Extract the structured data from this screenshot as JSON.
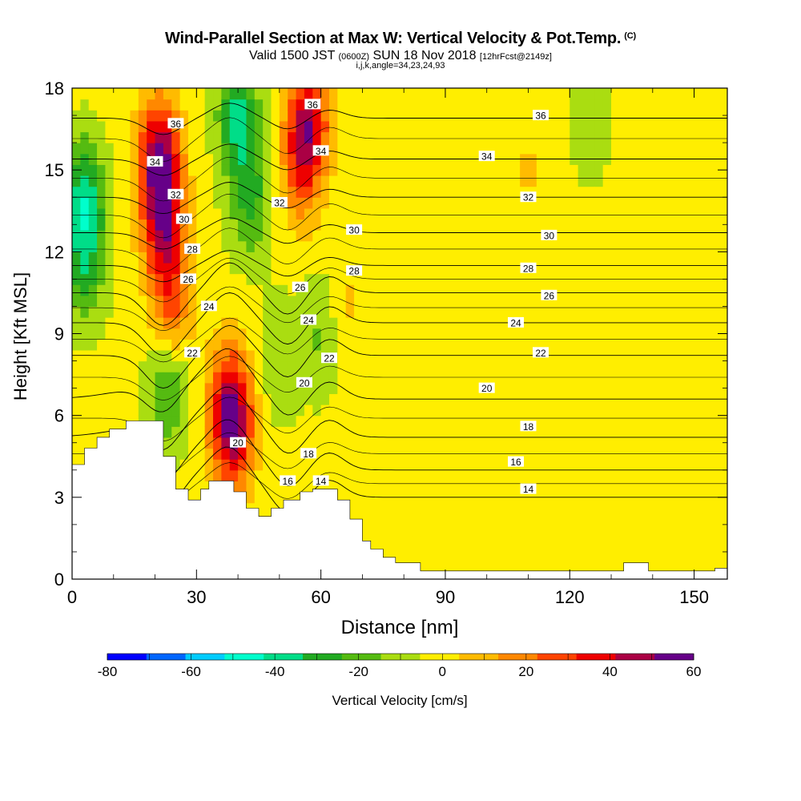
{
  "title": "Wind-Parallel Section at Max W: Vertical Velocity & Pot.Temp.",
  "title_mark": "(C)",
  "subtitle": {
    "valid_prefix": "Valid 1500 JST",
    "utc": "(0600Z)",
    "date": "SUN 18 Nov 2018",
    "forecast": "[12hrFcst@2149z]"
  },
  "grid_info": "i,j,k,angle=34,23,24,93",
  "chart_data": {
    "type": "heatmap",
    "xlabel": "Distance [nm]",
    "ylabel": "Height [Kft MSL]",
    "xlim": [
      0,
      158
    ],
    "ylim": [
      0,
      18
    ],
    "xticks": [
      0,
      30,
      60,
      90,
      120,
      150
    ],
    "yticks": [
      0,
      3,
      6,
      9,
      12,
      15,
      18
    ],
    "colorbar": {
      "label": "Vertical Velocity [cm/s]",
      "ticks": [
        -80,
        -60,
        -40,
        -20,
        0,
        20,
        40,
        60
      ],
      "bins": [
        -80,
        -70,
        -60,
        -50,
        -40,
        -30,
        -20,
        -10,
        0,
        10,
        20,
        30,
        40,
        50,
        60
      ],
      "colors": [
        "#0000ff",
        "#0066ff",
        "#00ccff",
        "#00ffcc",
        "#00dd88",
        "#22aa22",
        "#55bb11",
        "#aadd11",
        "#ffee00",
        "#ffbb00",
        "#ff8800",
        "#ff4400",
        "#ee0000",
        "#aa0044",
        "#660088"
      ]
    },
    "terrain": [
      [
        0,
        4.2
      ],
      [
        3,
        4.2
      ],
      [
        3,
        4.8
      ],
      [
        6,
        4.8
      ],
      [
        6,
        5.2
      ],
      [
        9,
        5.2
      ],
      [
        9,
        5.5
      ],
      [
        13,
        5.5
      ],
      [
        13,
        5.8
      ],
      [
        22,
        5.8
      ],
      [
        22,
        4.5
      ],
      [
        25,
        4.5
      ],
      [
        25,
        3.3
      ],
      [
        28,
        3.3
      ],
      [
        28,
        2.9
      ],
      [
        31,
        2.9
      ],
      [
        31,
        3.3
      ],
      [
        33,
        3.3
      ],
      [
        33,
        3.6
      ],
      [
        39,
        3.6
      ],
      [
        39,
        3.2
      ],
      [
        42,
        3.2
      ],
      [
        42,
        2.6
      ],
      [
        45,
        2.6
      ],
      [
        45,
        2.3
      ],
      [
        48,
        2.3
      ],
      [
        48,
        2.6
      ],
      [
        51,
        2.6
      ],
      [
        51,
        2.9
      ],
      [
        55,
        2.9
      ],
      [
        55,
        3.2
      ],
      [
        58,
        3.2
      ],
      [
        58,
        3.3
      ],
      [
        64,
        3.3
      ],
      [
        64,
        2.9
      ],
      [
        67,
        2.9
      ],
      [
        67,
        2.2
      ],
      [
        70,
        2.2
      ],
      [
        70,
        1.4
      ],
      [
        72,
        1.4
      ],
      [
        72,
        1.1
      ],
      [
        75,
        1.1
      ],
      [
        75,
        0.8
      ],
      [
        78,
        0.8
      ],
      [
        78,
        0.6
      ],
      [
        84,
        0.6
      ],
      [
        84,
        0.3
      ],
      [
        133,
        0.3
      ],
      [
        133,
        0.6
      ],
      [
        139,
        0.6
      ],
      [
        139,
        0.3
      ],
      [
        155,
        0.3
      ],
      [
        155,
        0.4
      ],
      [
        158,
        0.4
      ],
      [
        158,
        0
      ],
      [
        0,
        0
      ]
    ],
    "w_features": [
      {
        "x": 22,
        "y": 13,
        "w": 45
      },
      {
        "x": 21,
        "y": 15.5,
        "w": 55
      },
      {
        "x": 24,
        "y": 10,
        "w": 30
      },
      {
        "x": 38,
        "y": 6.5,
        "w": 45
      },
      {
        "x": 39,
        "y": 5,
        "w": 30
      },
      {
        "x": 57,
        "y": 16.8,
        "w": 45
      },
      {
        "x": 55,
        "y": 15,
        "w": 25
      },
      {
        "x": 3,
        "y": 14,
        "w": -35
      },
      {
        "x": 3,
        "y": 11.5,
        "w": -25
      },
      {
        "x": 23,
        "y": 7,
        "w": -25
      },
      {
        "x": 40,
        "y": 17,
        "w": -35
      },
      {
        "x": 43,
        "y": 14,
        "w": -25
      },
      {
        "x": 60,
        "y": 9,
        "w": -15
      },
      {
        "x": 50,
        "y": 8,
        "w": -12
      },
      {
        "x": 125,
        "y": 17,
        "w": -12
      },
      {
        "x": 110,
        "y": 15,
        "w": 8
      },
      {
        "x": 140,
        "y": 12,
        "w": 7
      },
      {
        "x": 66,
        "y": 10,
        "w": 10
      }
    ],
    "theta_levels": [
      14,
      16,
      18,
      20,
      22,
      24,
      26,
      28,
      30,
      32,
      34,
      36
    ],
    "theta_labels": [
      {
        "v": 36,
        "x": 25,
        "y": 16.7
      },
      {
        "v": 36,
        "x": 58,
        "y": 17.4
      },
      {
        "v": 36,
        "x": 113,
        "y": 17.0
      },
      {
        "v": 34,
        "x": 20,
        "y": 15.3
      },
      {
        "v": 34,
        "x": 60,
        "y": 15.7
      },
      {
        "v": 34,
        "x": 100,
        "y": 15.5
      },
      {
        "v": 32,
        "x": 25,
        "y": 14.1
      },
      {
        "v": 32,
        "x": 50,
        "y": 13.8
      },
      {
        "v": 32,
        "x": 110,
        "y": 14.0
      },
      {
        "v": 30,
        "x": 27,
        "y": 13.2
      },
      {
        "v": 30,
        "x": 68,
        "y": 12.8
      },
      {
        "v": 30,
        "x": 115,
        "y": 12.6
      },
      {
        "v": 28,
        "x": 29,
        "y": 12.1
      },
      {
        "v": 28,
        "x": 68,
        "y": 11.3
      },
      {
        "v": 28,
        "x": 110,
        "y": 11.4
      },
      {
        "v": 26,
        "x": 28,
        "y": 11.0
      },
      {
        "v": 26,
        "x": 55,
        "y": 10.7
      },
      {
        "v": 26,
        "x": 115,
        "y": 10.4
      },
      {
        "v": 24,
        "x": 33,
        "y": 10.0
      },
      {
        "v": 24,
        "x": 57,
        "y": 9.5
      },
      {
        "v": 24,
        "x": 107,
        "y": 9.4
      },
      {
        "v": 22,
        "x": 29,
        "y": 8.3
      },
      {
        "v": 22,
        "x": 62,
        "y": 8.1
      },
      {
        "v": 22,
        "x": 113,
        "y": 8.3
      },
      {
        "v": 20,
        "x": 40,
        "y": 5.0
      },
      {
        "v": 20,
        "x": 56,
        "y": 7.2
      },
      {
        "v": 20,
        "x": 100,
        "y": 7.0
      },
      {
        "v": 18,
        "x": 57,
        "y": 4.6
      },
      {
        "v": 18,
        "x": 110,
        "y": 5.6
      },
      {
        "v": 16,
        "x": 52,
        "y": 3.6
      },
      {
        "v": 16,
        "x": 107,
        "y": 4.3
      },
      {
        "v": 14,
        "x": 60,
        "y": 3.6
      },
      {
        "v": 14,
        "x": 110,
        "y": 3.3
      }
    ]
  }
}
